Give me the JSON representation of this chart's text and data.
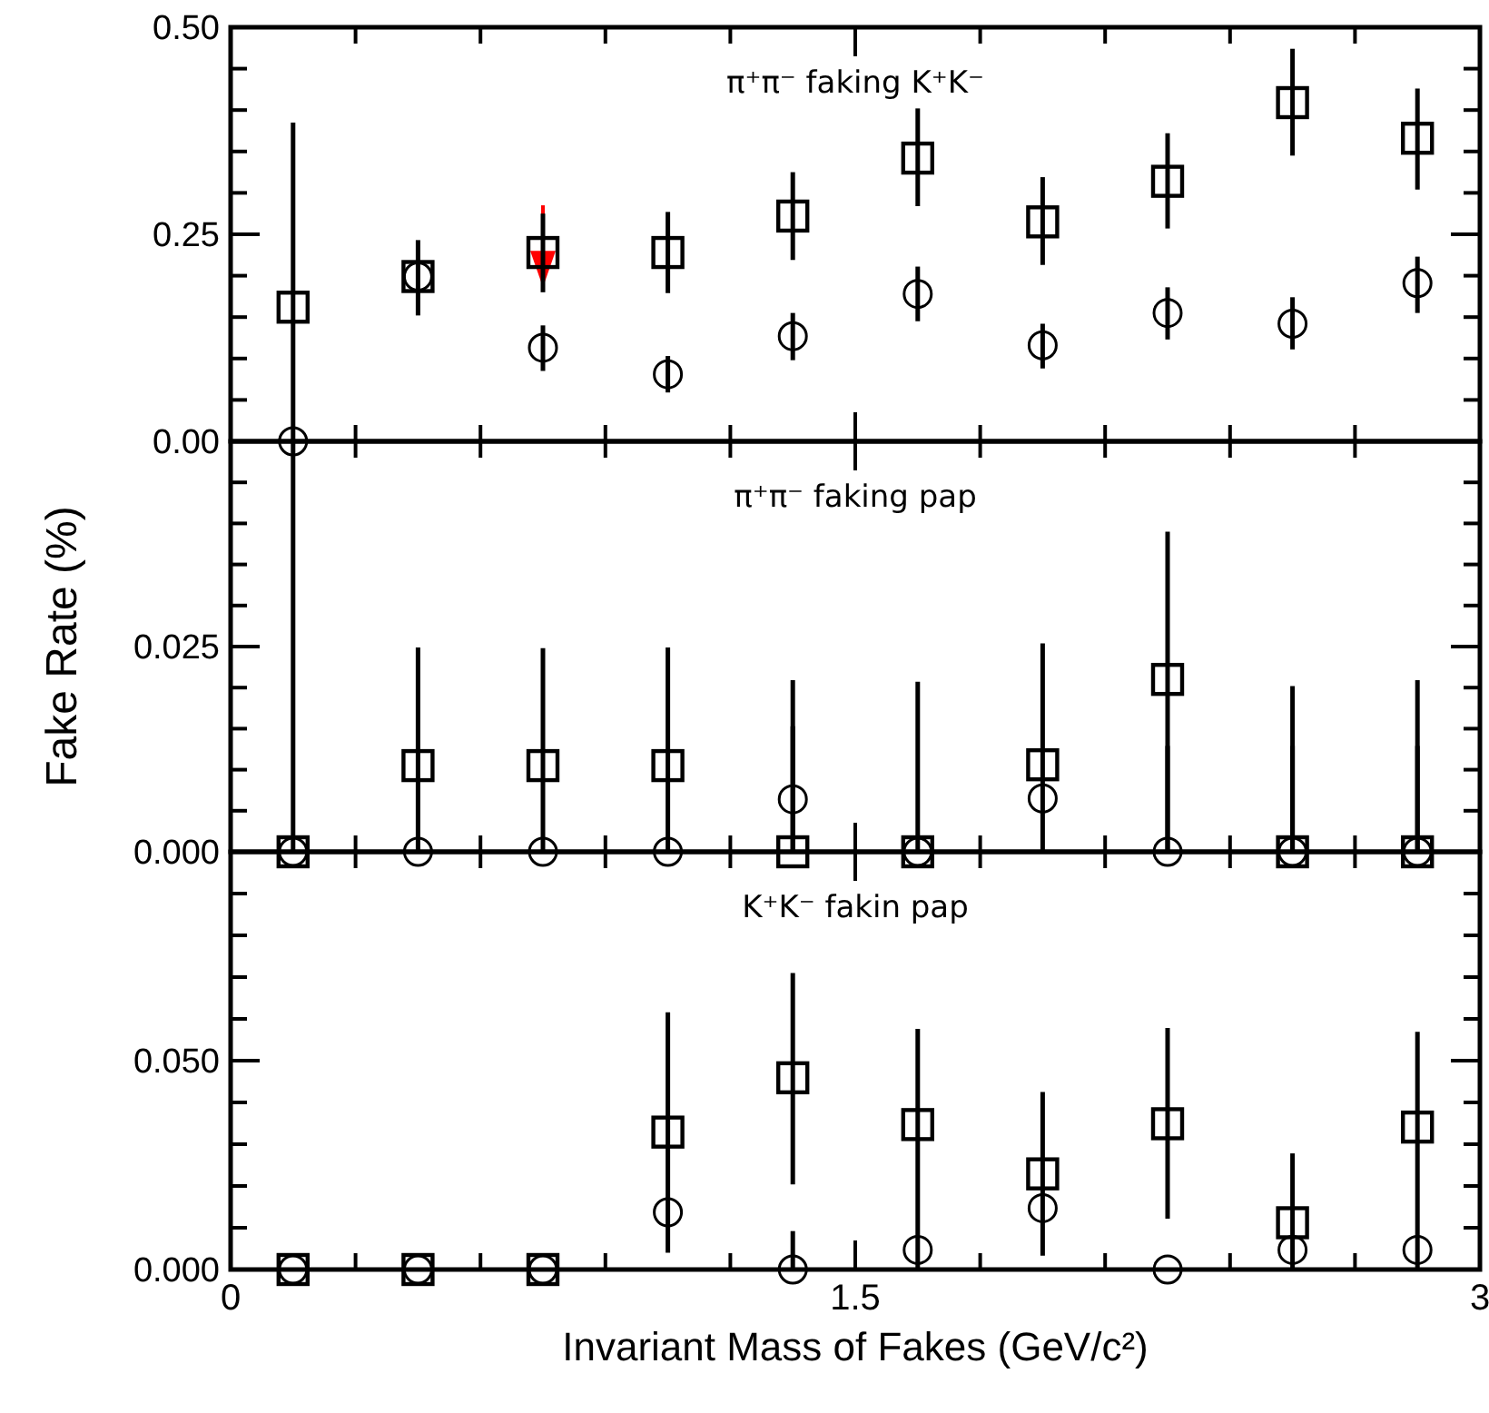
{
  "chart_data": [
    {
      "type": "scatter",
      "title": "π⁺π⁻ faking K⁺K⁻",
      "tick_labels": "y",
      "xlim": [
        0,
        3
      ],
      "xticks": [
        {
          "value": 0,
          "label": null
        },
        {
          "value": 0.3,
          "label": null
        },
        {
          "value": 0.6,
          "label": null
        },
        {
          "value": 0.9,
          "label": null
        },
        {
          "value": 1.2,
          "label": null
        },
        {
          "value": 1.5,
          "label": null
        },
        {
          "value": 1.8,
          "label": null
        },
        {
          "value": 2.1,
          "label": null
        },
        {
          "value": 2.4,
          "label": null
        },
        {
          "value": 2.7,
          "label": null
        },
        {
          "value": 3,
          "label": null
        }
      ],
      "ylim": [
        0,
        0.5
      ],
      "yticks": [
        {
          "value": 0,
          "label": "0.00"
        },
        {
          "value": 0.05,
          "label": null
        },
        {
          "value": 0.1,
          "label": null
        },
        {
          "value": 0.15,
          "label": null
        },
        {
          "value": 0.2,
          "label": null
        },
        {
          "value": 0.25,
          "label": "0.25"
        },
        {
          "value": 0.3,
          "label": null
        },
        {
          "value": 0.35,
          "label": null
        },
        {
          "value": 0.4,
          "label": null
        },
        {
          "value": 0.45,
          "label": null
        },
        {
          "value": 0.5,
          "label": "0.50"
        }
      ],
      "x": [
        0.15,
        0.45,
        0.75,
        1.05,
        1.35,
        1.65,
        1.95,
        2.25,
        2.55,
        2.85
      ],
      "series": [
        {
          "color": "#000000",
          "marker": "square",
          "values": [
            0.162,
            0.199,
            0.228,
            0.228,
            0.272,
            0.342,
            0.265,
            0.314,
            0.409,
            0.366
          ],
          "errors": [
            [
              0,
              0.385
            ],
            [
              0.152,
              0.243
            ],
            [
              0.18,
              0.275
            ],
            [
              0.179,
              0.277
            ],
            [
              0.219,
              0.325
            ],
            [
              0.284,
              0.402
            ],
            [
              0.213,
              0.319
            ],
            [
              0.257,
              0.372
            ],
            [
              0.345,
              0.474
            ],
            [
              0.304,
              0.426
            ]
          ]
        },
        {
          "color": "#000000",
          "marker": "circle",
          "values": [
            0,
            0.199,
            0.113,
            0.081,
            0.127,
            0.178,
            0.116,
            0.155,
            0.142,
            0.191
          ],
          "errors": [
            null,
            null,
            [
              0.085,
              0.14
            ],
            [
              0.059,
              0.103
            ],
            [
              0.098,
              0.155
            ],
            [
              0.145,
              0.211
            ],
            [
              0.088,
              0.142
            ],
            [
              0.123,
              0.186
            ],
            [
              0.111,
              0.174
            ],
            [
              0.155,
              0.223
            ]
          ]
        }
      ]
    },
    {
      "type": "scatter",
      "title": "π⁺π⁻ faking pap",
      "ylabel": "Fake Rate (%)",
      "tick_labels": "y",
      "xlim": [
        0,
        3
      ],
      "xticks": [
        {
          "value": 0,
          "label": null
        },
        {
          "value": 0.3,
          "label": null
        },
        {
          "value": 0.6,
          "label": null
        },
        {
          "value": 0.9,
          "label": null
        },
        {
          "value": 1.2,
          "label": null
        },
        {
          "value": 1.5,
          "label": null
        },
        {
          "value": 1.8,
          "label": null
        },
        {
          "value": 2.1,
          "label": null
        },
        {
          "value": 2.4,
          "label": null
        },
        {
          "value": 2.7,
          "label": null
        },
        {
          "value": 3,
          "label": null
        }
      ],
      "ylim": [
        0,
        0.05
      ],
      "yticks": [
        {
          "value": 0,
          "label": "0.000"
        },
        {
          "value": 0.005,
          "label": null
        },
        {
          "value": 0.01,
          "label": null
        },
        {
          "value": 0.015,
          "label": null
        },
        {
          "value": 0.02,
          "label": null
        },
        {
          "value": 0.025,
          "label": "0.025"
        },
        {
          "value": 0.03,
          "label": null
        },
        {
          "value": 0.035,
          "label": null
        },
        {
          "value": 0.04,
          "label": null
        },
        {
          "value": 0.045,
          "label": null
        },
        {
          "value": 0.05,
          "label": null
        }
      ],
      "x": [
        0.15,
        0.45,
        0.75,
        1.05,
        1.35,
        1.65,
        1.95,
        2.25,
        2.55,
        2.85
      ],
      "series": [
        {
          "color": "#000000",
          "marker": "square",
          "values": [
            0,
            0.0105,
            0.0105,
            0.0105,
            0,
            0,
            0.0106,
            0.021,
            0,
            0
          ],
          "errors": [
            [
              0,
              0.05
            ],
            [
              0,
              0.0249
            ],
            [
              0,
              0.0248
            ],
            [
              0,
              0.0249
            ],
            [
              0,
              0.0209
            ],
            [
              0,
              0.0207
            ],
            [
              0,
              0.0254
            ],
            [
              0,
              0.039
            ],
            [
              0,
              0.0202
            ],
            [
              0,
              0.0209
            ]
          ]
        },
        {
          "color": "#000000",
          "marker": "circle",
          "values": [
            0,
            0,
            0,
            0,
            0.0064,
            0,
            0.0065,
            0,
            0,
            0
          ],
          "errors": [
            null,
            null,
            null,
            null,
            [
              0,
              0.0153
            ],
            null,
            null,
            [
              0,
              0.0129
            ],
            [
              0,
              0.0129
            ],
            [
              0,
              0.0129
            ]
          ]
        }
      ]
    },
    {
      "type": "scatter",
      "title": "K⁺K⁻ fakin pap",
      "xlabel": "Invariant Mass of Fakes (GeV/c²)",
      "xlim": [
        0,
        3
      ],
      "xticks": [
        {
          "value": 0,
          "label": "0"
        },
        {
          "value": 0.3,
          "label": null
        },
        {
          "value": 0.6,
          "label": null
        },
        {
          "value": 0.9,
          "label": null
        },
        {
          "value": 1.2,
          "label": null
        },
        {
          "value": 1.5,
          "label": "1.5"
        },
        {
          "value": 1.8,
          "label": null
        },
        {
          "value": 2.1,
          "label": null
        },
        {
          "value": 2.4,
          "label": null
        },
        {
          "value": 2.7,
          "label": null
        },
        {
          "value": 3,
          "label": "3"
        }
      ],
      "ylim": [
        0,
        0.1
      ],
      "yticks": [
        {
          "value": 0,
          "label": "0.000"
        },
        {
          "value": 0.01,
          "label": null
        },
        {
          "value": 0.02,
          "label": null
        },
        {
          "value": 0.03,
          "label": null
        },
        {
          "value": 0.04,
          "label": null
        },
        {
          "value": 0.05,
          "label": "0.050"
        },
        {
          "value": 0.06,
          "label": null
        },
        {
          "value": 0.07,
          "label": null
        },
        {
          "value": 0.08,
          "label": null
        },
        {
          "value": 0.09,
          "label": null
        },
        {
          "value": 0.1,
          "label": null
        }
      ],
      "x": [
        0.15,
        0.45,
        0.75,
        1.05,
        1.35,
        1.65,
        1.95,
        2.25,
        2.55,
        2.85
      ],
      "series": [
        {
          "color": "#000000",
          "marker": "square",
          "values": [
            0,
            0,
            0,
            0.0329,
            0.0459,
            0.0347,
            0.0229,
            0.0349,
            0.0112,
            0.0341
          ],
          "errors": [
            null,
            null,
            null,
            [
              0.004,
              0.0616
            ],
            [
              0.0204,
              0.071
            ],
            [
              0,
              0.0576
            ],
            [
              0.0033,
              0.0425
            ],
            [
              0.0122,
              0.0578
            ],
            [
              0,
              0.0278
            ],
            [
              0,
              0.0569
            ]
          ]
        },
        {
          "color": "#000000",
          "marker": "circle",
          "values": [
            0,
            0,
            0,
            0.0137,
            0,
            0.0047,
            0.0147,
            0,
            0.0047,
            0.0047
          ],
          "errors": [
            null,
            null,
            null,
            null,
            [
              0,
              0.0092
            ],
            null,
            null,
            null,
            null,
            null
          ]
        }
      ]
    }
  ]
}
